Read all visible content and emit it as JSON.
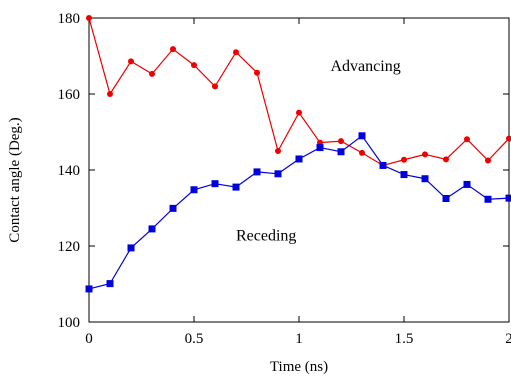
{
  "chart_data": {
    "type": "line",
    "xlabel": "Time (ns)",
    "ylabel": "Contact angle  (Deg.)",
    "xlim": [
      0,
      2
    ],
    "ylim": [
      100,
      180
    ],
    "x_ticks": [
      0,
      0.5,
      1,
      1.5,
      2
    ],
    "x_tick_labels": [
      "0",
      "0.5",
      "1",
      "1.5",
      "2"
    ],
    "y_ticks": [
      100,
      120,
      140,
      160,
      180
    ],
    "y_tick_labels": [
      "100",
      "120",
      "140",
      "160",
      "180"
    ],
    "grid": false,
    "series": [
      {
        "name": "Advancing",
        "color": "#ee0000",
        "marker": "circle",
        "x": [
          0,
          0.1,
          0.2,
          0.3,
          0.4,
          0.5,
          0.6,
          0.7,
          0.8,
          0.9,
          1.0,
          1.1,
          1.2,
          1.3,
          1.4,
          1.5,
          1.6,
          1.7,
          1.8,
          1.9,
          2.0
        ],
        "values": [
          180.0,
          160.0,
          168.6,
          165.3,
          171.8,
          167.6,
          162.0,
          171.0,
          165.6,
          145.0,
          155.1,
          147.2,
          147.6,
          144.5,
          141.2,
          142.7,
          144.1,
          142.8,
          148.1,
          142.5,
          148.3
        ]
      },
      {
        "name": "Receding",
        "color": "#0000dd",
        "marker": "square",
        "x": [
          0,
          0.1,
          0.2,
          0.3,
          0.4,
          0.5,
          0.6,
          0.7,
          0.8,
          0.9,
          1.0,
          1.1,
          1.2,
          1.3,
          1.4,
          1.5,
          1.6,
          1.7,
          1.8,
          1.9,
          2.0
        ],
        "values": [
          108.7,
          110.1,
          119.5,
          124.5,
          129.9,
          134.8,
          136.4,
          135.5,
          139.5,
          139.0,
          142.9,
          145.9,
          144.8,
          149.0,
          141.2,
          138.8,
          137.7,
          132.5,
          136.2,
          132.3,
          132.6
        ]
      }
    ],
    "annotations": [
      {
        "text": "Advancing",
        "x": 1.15,
        "y": 166
      },
      {
        "text": "Receding",
        "x": 0.7,
        "y": 121.5
      }
    ]
  }
}
